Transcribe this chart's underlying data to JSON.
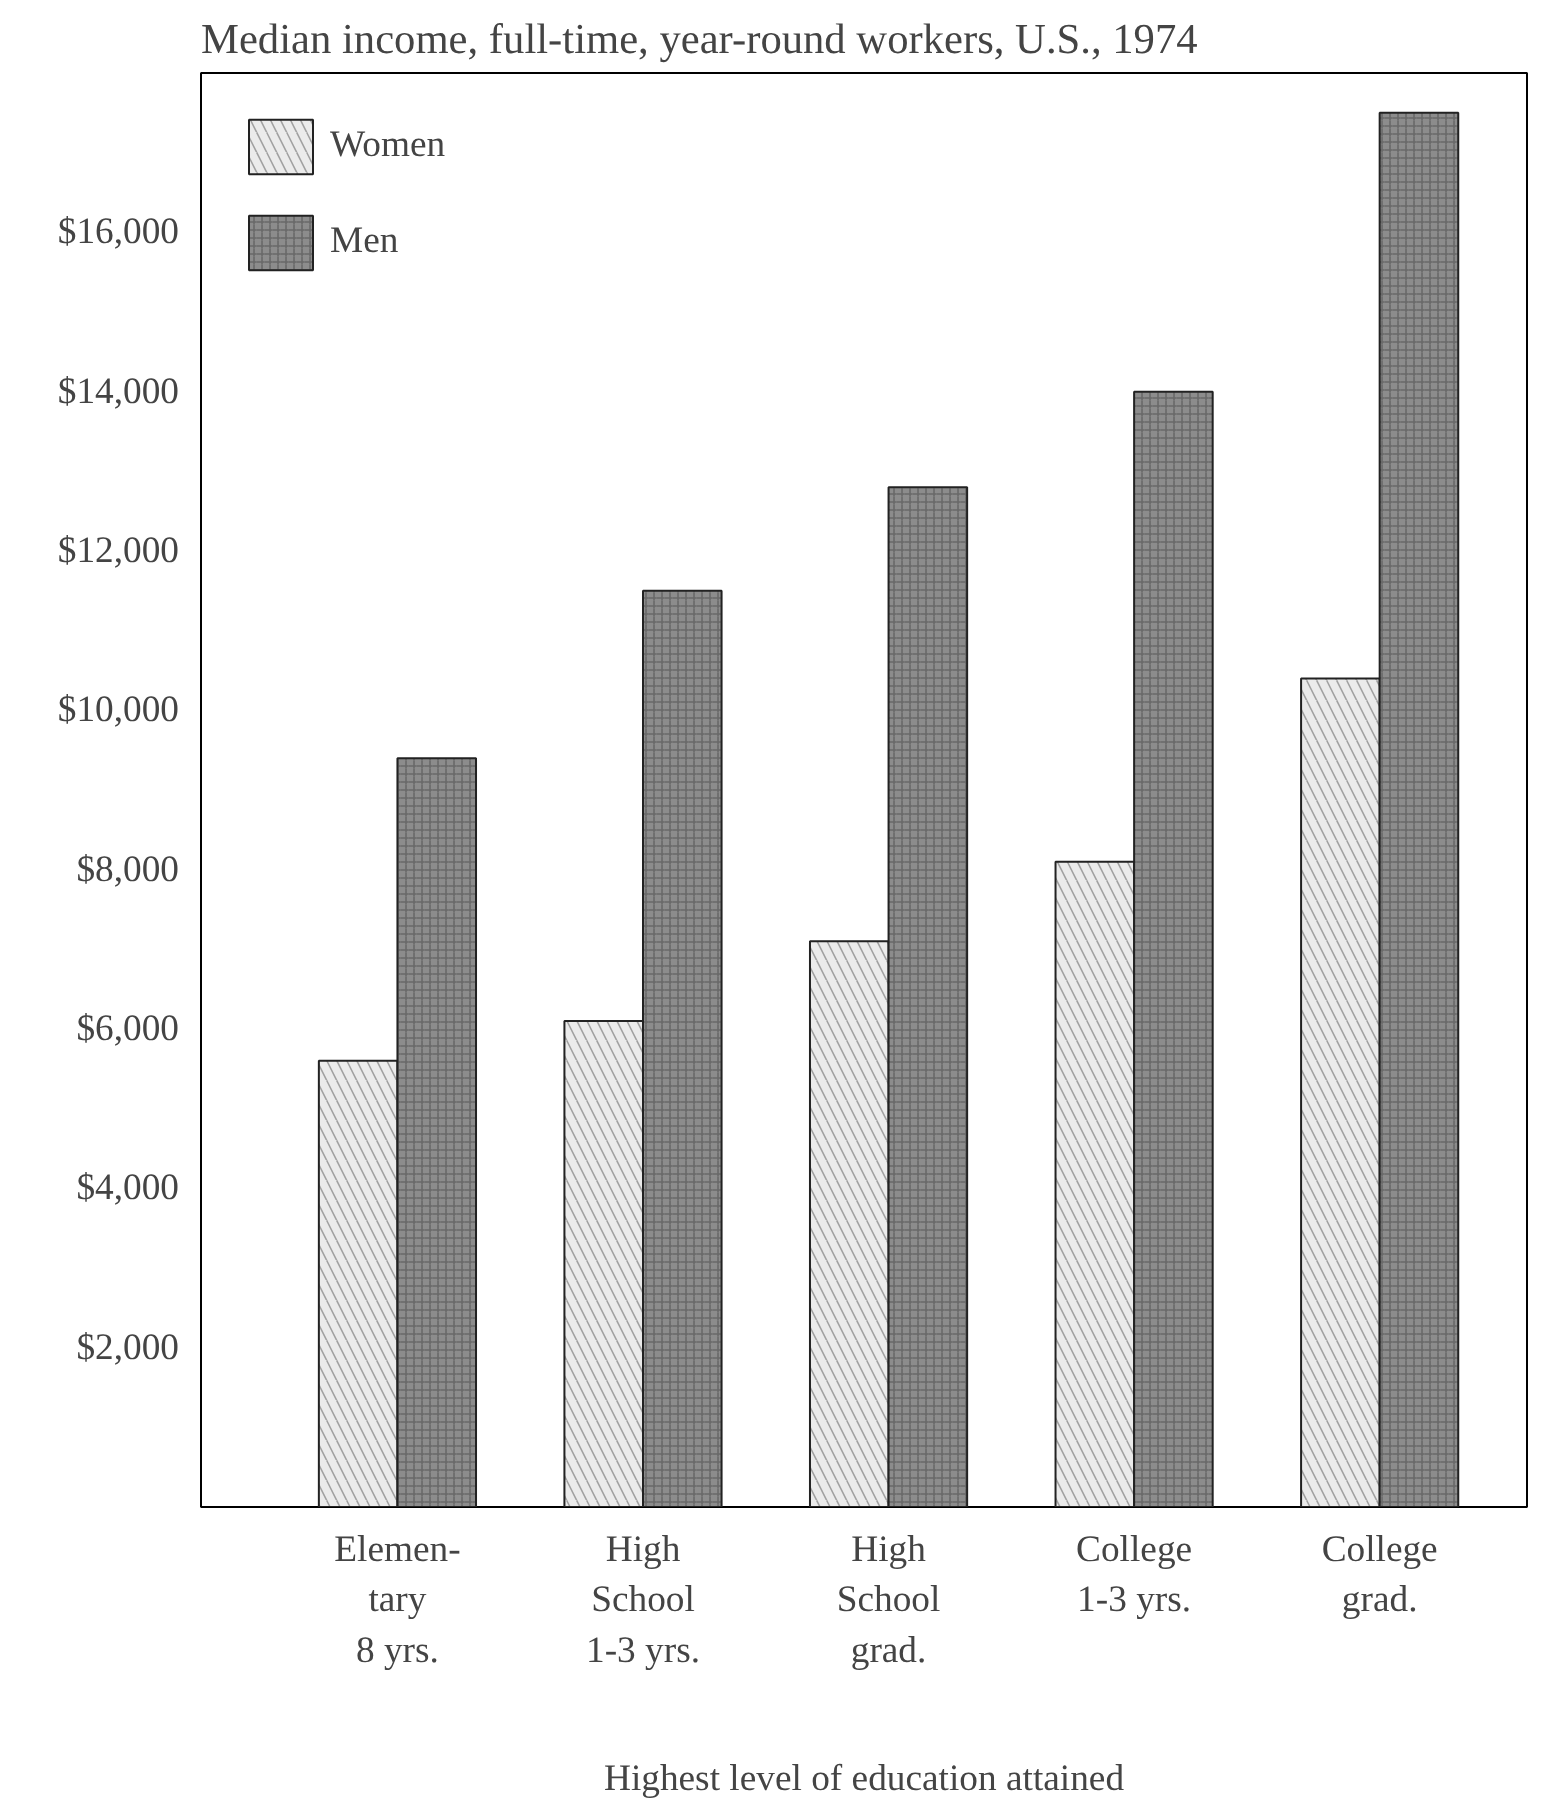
{
  "chart_data": {
    "type": "bar",
    "title": "Median income, full-time, year-round workers, U.S., 1974",
    "xlabel": "Highest level of education attained",
    "categories": [
      "Elemen-\ntary\n8 yrs.",
      "High\nSchool\n1-3 yrs.",
      "High\nSchool\ngrad.",
      "College\n1-3 yrs.",
      "College\ngrad."
    ],
    "series": [
      {
        "name": "Women",
        "color": "#ebebeb",
        "values": [
          5600,
          6100,
          7100,
          8100,
          10400
        ]
      },
      {
        "name": "Men",
        "color": "#8c8c8c",
        "values": [
          9400,
          11500,
          12800,
          14000,
          17500
        ]
      }
    ],
    "ylim": [
      0,
      18000
    ],
    "yticks": [
      {
        "value": 2000,
        "label": "$2,000"
      },
      {
        "value": 4000,
        "label": "$4,000"
      },
      {
        "value": 6000,
        "label": "$6,000"
      },
      {
        "value": 8000,
        "label": "$8,000"
      },
      {
        "value": 10000,
        "label": "$10,000"
      },
      {
        "value": 12000,
        "label": "$12,000"
      },
      {
        "value": 14000,
        "label": "$14,000"
      },
      {
        "value": 16000,
        "label": "$16,000"
      }
    ],
    "legend": "top left",
    "grid": false
  }
}
